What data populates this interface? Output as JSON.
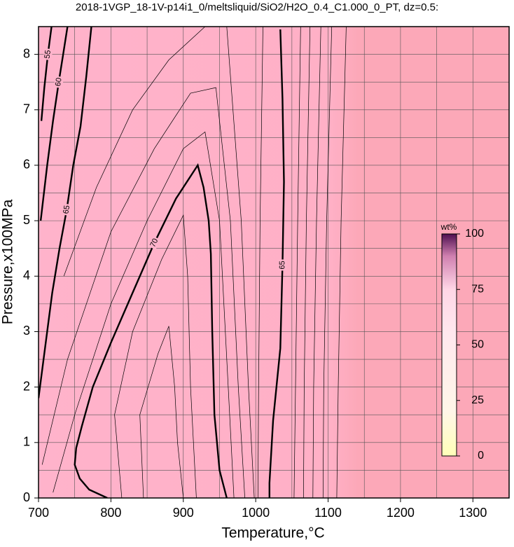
{
  "chart_data": {
    "type": "contour",
    "title": "2018-1VGP_18-1V-p14i1_0/meltsliquid/SiO2/H2O_0.4_C1.000_0_PT, dz=0.5:",
    "x_label": "Temperature,°C",
    "y_label": "Pressure,x100MPa",
    "xlim": [
      700,
      1350
    ],
    "ylim": [
      0,
      8.5
    ],
    "xticks": [
      700,
      800,
      900,
      1000,
      1100,
      1200,
      1300
    ],
    "yticks": [
      0,
      1,
      2,
      3,
      4,
      5,
      6,
      7,
      8
    ],
    "xgrid": [
      750,
      850,
      950,
      1050,
      1150,
      1250
    ],
    "ygrid": [
      0.5,
      1.5,
      2.5,
      3.5,
      4.5,
      5.5,
      6.5,
      7.5
    ],
    "grid": true,
    "contours": [
      {
        "level": 70,
        "bold": true,
        "x": [
          795,
          770,
          757,
          750,
          752,
          760,
          775,
          800,
          830,
          860,
          890,
          920,
          928,
          935,
          938,
          940,
          943,
          950,
          960
        ],
        "y": [
          0,
          0.15,
          0.35,
          0.6,
          0.9,
          1.3,
          2.0,
          2.8,
          3.7,
          4.6,
          5.4,
          6.0,
          5.6,
          5.0,
          4.4,
          3.0,
          1.5,
          0.5,
          0
        ]
      },
      {
        "level": 65,
        "bold": true,
        "x": [
          1019,
          1019,
          1024,
          1034,
          1037,
          1039,
          1037,
          1034
        ],
        "y": [
          0,
          0.27,
          1.4,
          2.7,
          4.2,
          5.7,
          7.2,
          8.45
        ]
      },
      {
        "level": 65,
        "bold": true,
        "x": [
          700,
          710,
          719,
          729,
          739,
          748,
          758,
          766,
          773
        ],
        "y": [
          1.8,
          2.8,
          3.7,
          4.5,
          5.2,
          6.0,
          6.7,
          7.6,
          8.5
        ]
      },
      {
        "level": 60,
        "bold": true,
        "x": [
          703,
          712,
          720,
          728,
          734,
          740
        ],
        "y": [
          5.0,
          6.0,
          6.8,
          7.5,
          8.0,
          8.5
        ]
      },
      {
        "level": 55,
        "bold": true,
        "x": [
          704,
          708,
          713,
          718
        ],
        "y": [
          6.8,
          7.4,
          8.0,
          8.5
        ]
      },
      {
        "x": [
          815,
          805,
          830,
          870,
          900,
          906,
          910,
          918
        ],
        "y": [
          0,
          1.5,
          3.0,
          4.3,
          5.1,
          4.0,
          2.0,
          0
        ]
      },
      {
        "x": [
          845,
          840,
          865,
          880,
          888,
          892,
          900
        ],
        "y": [
          0,
          1.5,
          2.6,
          3.1,
          2.0,
          1.0,
          0
        ]
      },
      {
        "x": [
          720,
          750,
          800,
          850,
          900,
          930,
          950,
          962,
          970
        ],
        "y": [
          0.1,
          1.5,
          3.5,
          5.0,
          6.3,
          6.6,
          5.0,
          2.0,
          0
        ]
      },
      {
        "x": [
          705,
          740,
          800,
          860,
          910,
          945,
          965,
          976,
          985
        ],
        "y": [
          0.6,
          2.5,
          4.8,
          6.3,
          7.3,
          7.4,
          5.0,
          2.0,
          0
        ]
      },
      {
        "x": [
          735,
          780,
          830,
          880,
          930,
          960,
          980,
          990,
          998
        ],
        "y": [
          4.0,
          5.6,
          7.0,
          7.9,
          8.5,
          8.5,
          5.0,
          2.0,
          0
        ]
      },
      {
        "x": [
          1010,
          1006,
          1004,
          1003
        ],
        "y": [
          8.5,
          5.0,
          2.0,
          0
        ]
      },
      {
        "x": [
          1062,
          1058,
          1055,
          1053
        ],
        "y": [
          8.5,
          5.0,
          2.0,
          0
        ]
      },
      {
        "x": [
          1075,
          1070,
          1067,
          1066
        ],
        "y": [
          8.5,
          5.0,
          2.0,
          0
        ]
      },
      {
        "x": [
          1090,
          1084,
          1080,
          1079
        ],
        "y": [
          8.5,
          5.0,
          2.0,
          0
        ]
      },
      {
        "x": [
          1105,
          1098,
          1094,
          1093
        ],
        "y": [
          8.5,
          5.0,
          2.0,
          0
        ]
      },
      {
        "x": [
          1125,
          1118,
          1114,
          1112
        ],
        "y": [
          8.5,
          5.0,
          2.0,
          0
        ]
      }
    ],
    "colorbar": {
      "label": "wt%",
      "lim": [
        0,
        100
      ],
      "ticks": [
        0,
        25,
        50,
        75,
        100
      ]
    }
  }
}
